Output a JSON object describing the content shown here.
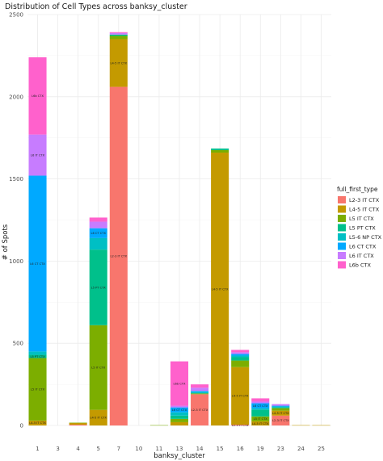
{
  "chart_data": {
    "type": "bar",
    "stacked": true,
    "title": "Distribution of Cell Types across banksy_cluster",
    "xlabel": "banksy_cluster",
    "ylabel": "# of Spots",
    "categories": [
      "1",
      "3",
      "4",
      "5",
      "7",
      "10",
      "11",
      "13",
      "14",
      "15",
      "16",
      "19",
      "23",
      "24",
      "25"
    ],
    "ylim": [
      0,
      2500
    ],
    "yticks": [
      0,
      500,
      1000,
      1500,
      2000,
      2500
    ],
    "grid": true,
    "legend_position": "right",
    "legend_title": "full_first_type",
    "series": [
      {
        "name": "L2-3 IT CTX",
        "color": "#F8766D",
        "values": [
          0,
          0,
          5,
          0,
          2060,
          0,
          0,
          0,
          190,
          0,
          5,
          0,
          60,
          0,
          0
        ],
        "labels": [
          "",
          "",
          "",
          "",
          "L2-3 IT CTX",
          "",
          "",
          "",
          "L2-3 IT CTX",
          "",
          "L2-3 IT CTX",
          "",
          "L2-3 IT CTX",
          "",
          ""
        ]
      },
      {
        "name": "L4-5 IT CTX",
        "color": "#C49A00",
        "values": [
          30,
          0,
          10,
          95,
          290,
          0,
          0,
          20,
          0,
          1660,
          350,
          25,
          30,
          2,
          2
        ],
        "labels": [
          "L4-5 IT CTX",
          "",
          "",
          "L4-5 IT CTX",
          "L4-5 IT CTX",
          "",
          "",
          "",
          "",
          "L4-5 IT CTX",
          "L4-5 IT CTX",
          "L4-5 IT CTX",
          "L4-5 IT CTX",
          "",
          ""
        ]
      },
      {
        "name": "L5 IT CTX",
        "color": "#7CAE00",
        "values": [
          380,
          0,
          2,
          515,
          20,
          0,
          2,
          20,
          5,
          15,
          40,
          30,
          15,
          0,
          0
        ],
        "labels": [
          "L5 IT CTX",
          "",
          "",
          "L5 IT CTX",
          "",
          "",
          "",
          "",
          "",
          "",
          "",
          "L5 IT CTX",
          "",
          "",
          ""
        ]
      },
      {
        "name": "L5 PT CTX",
        "color": "#00C08B",
        "values": [
          20,
          0,
          0,
          460,
          8,
          0,
          0,
          20,
          0,
          10,
          20,
          40,
          5,
          0,
          0
        ],
        "labels": [
          "L5 PT CTX",
          "",
          "",
          "L5 PT CTX",
          "",
          "",
          "",
          "",
          "",
          "",
          "",
          "",
          "",
          "",
          ""
        ]
      },
      {
        "name": "L5-6 NP CTX",
        "color": "#00BFC4",
        "values": [
          20,
          0,
          0,
          70,
          0,
          0,
          0,
          20,
          10,
          0,
          10,
          10,
          5,
          0,
          0
        ],
        "labels": [
          "",
          "",
          "",
          "",
          "",
          "",
          "",
          "",
          "",
          "",
          "",
          "",
          "",
          "",
          ""
        ]
      },
      {
        "name": "L6 CT CTX",
        "color": "#00A9FF",
        "values": [
          1070,
          0,
          0,
          60,
          0,
          0,
          0,
          30,
          5,
          0,
          10,
          30,
          5,
          0,
          0
        ],
        "labels": [
          "L6 CT CTX",
          "",
          "",
          "L6 CT CTX",
          "",
          "",
          "",
          "L6 CT CTX",
          "",
          "",
          "",
          "L6 CT CTX",
          "",
          "",
          ""
        ]
      },
      {
        "name": "L6 IT CTX",
        "color": "#C77CFF",
        "values": [
          250,
          0,
          0,
          40,
          10,
          0,
          0,
          10,
          20,
          0,
          10,
          10,
          10,
          0,
          0
        ],
        "labels": [
          "L6 IT CTX",
          "",
          "",
          "",
          "",
          "",
          "",
          "",
          "",
          "",
          "",
          "",
          "",
          "",
          ""
        ]
      },
      {
        "name": "L6b CTX",
        "color": "#FF61CC",
        "values": [
          470,
          0,
          0,
          25,
          5,
          0,
          0,
          270,
          20,
          0,
          15,
          20,
          0,
          0,
          0
        ],
        "labels": [
          "L6b CTX",
          "",
          "",
          "",
          "",
          "",
          "",
          "L6b CTX",
          "",
          "",
          "",
          "",
          "",
          "",
          ""
        ]
      }
    ]
  }
}
